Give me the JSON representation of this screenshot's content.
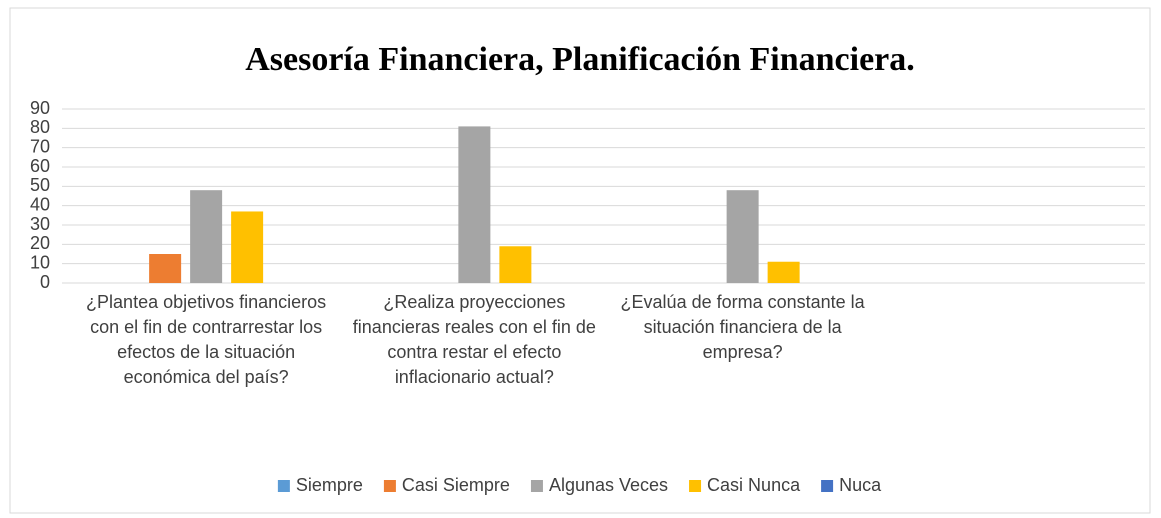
{
  "chart_data": {
    "type": "bar",
    "title": "Asesoría Financiera, Planificación Financiera.",
    "categories": [
      "¿Plantea objetivos financieros con el fin de contrarrestar los efectos de la situación económica del país?",
      "¿Realiza proyecciones financieras reales con el fin de contra restar el efecto inflacionario actual?",
      "¿Evalúa de forma constante la situación financiera de la empresa?",
      null
    ],
    "series": [
      {
        "name": "Siempre",
        "color": "#5b9bd5",
        "values": [
          0,
          0,
          0,
          null
        ]
      },
      {
        "name": "Casi Siempre",
        "color": "#ed7d31",
        "values": [
          15,
          0,
          0,
          null
        ]
      },
      {
        "name": "Algunas Veces",
        "color": "#a5a5a5",
        "values": [
          48,
          81,
          48,
          null
        ]
      },
      {
        "name": "Casi Nunca",
        "color": "#ffc000",
        "values": [
          37,
          19,
          11,
          null
        ]
      },
      {
        "name": "Nuca",
        "color": "#4472c4",
        "values": [
          0,
          0,
          0,
          null
        ]
      }
    ],
    "ylim": [
      0,
      90
    ],
    "yticks": [
      0,
      10,
      20,
      30,
      40,
      50,
      60,
      70,
      80,
      90
    ],
    "grid": true,
    "legend": "bottom"
  }
}
